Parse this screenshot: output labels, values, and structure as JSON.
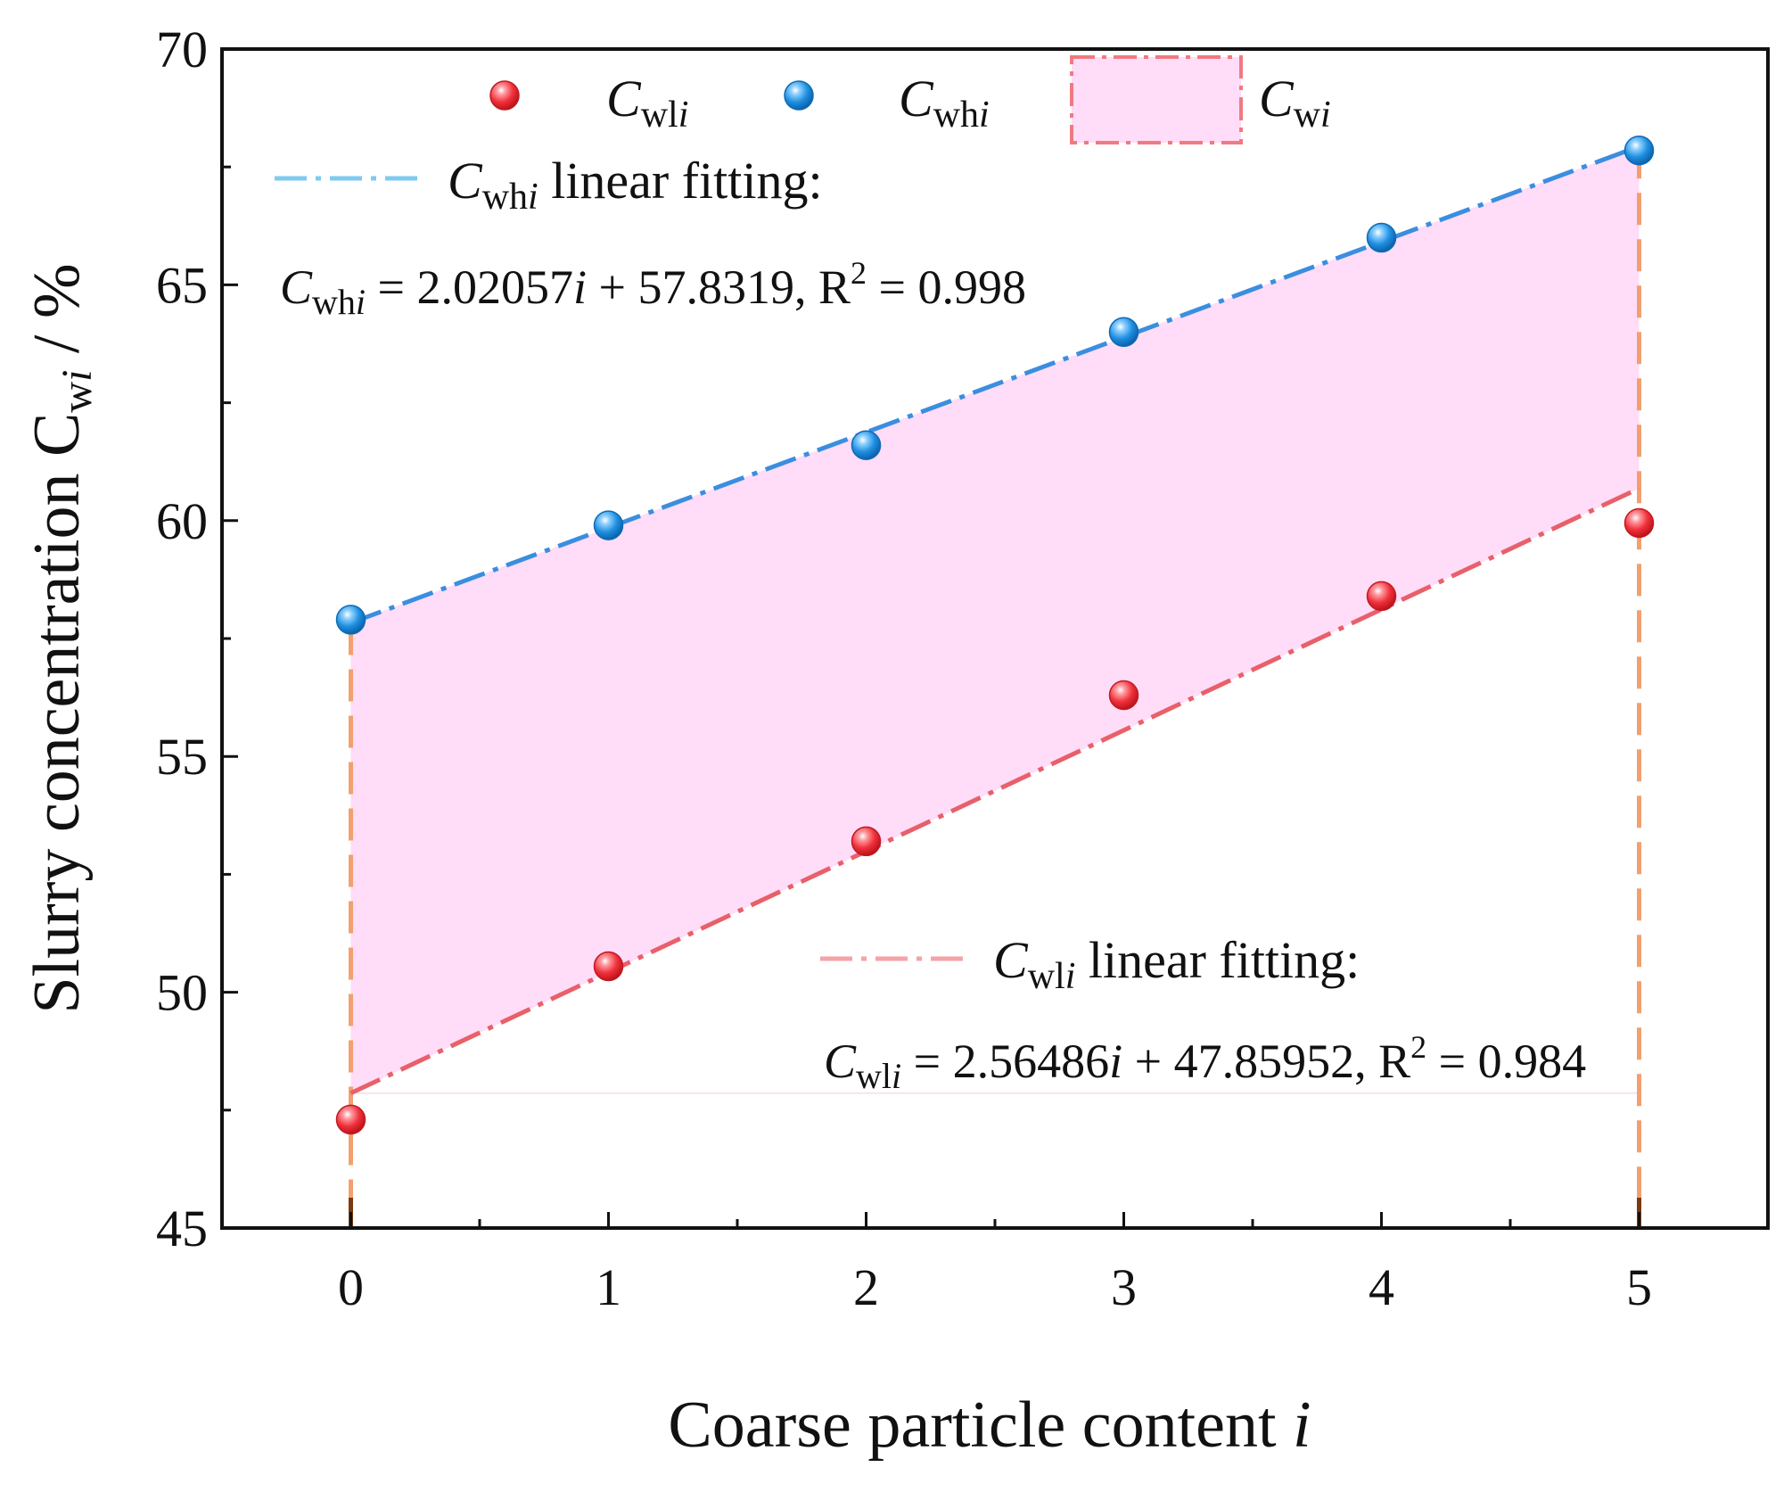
{
  "chart_data": {
    "type": "scatter",
    "xlabel": "Coarse particle content ",
    "xlabel_italic": "i",
    "ylabel": "Slurry concentration ",
    "ylabel_symbol": "C",
    "ylabel_sub": "w",
    "ylabel_sub_italic": "i",
    "ylabel_unit": " / %",
    "xlim": [
      -0.5,
      5.5
    ],
    "ylim": [
      45,
      70
    ],
    "x_ticks": [
      0,
      1,
      2,
      3,
      4,
      5
    ],
    "x_minor_ticks": [
      0.5,
      1.5,
      2.5,
      3.5,
      4.5
    ],
    "y_ticks": [
      45,
      50,
      55,
      60,
      65,
      70
    ],
    "y_minor_ticks": [
      47.5,
      52.5,
      57.5,
      62.5,
      67.5
    ],
    "x_tick_labels": [
      "0",
      "1",
      "2",
      "3",
      "4",
      "5"
    ],
    "y_tick_labels": [
      "45",
      "50",
      "55",
      "60",
      "65",
      "70"
    ],
    "series": [
      {
        "name": "Cwli",
        "symbol": "C",
        "sub": "wl",
        "sub_italic": "i",
        "color": "#f0303a",
        "x": [
          0,
          1,
          2,
          3,
          4,
          5
        ],
        "y": [
          47.3,
          50.55,
          53.2,
          56.3,
          58.4,
          59.95
        ],
        "fit": {
          "slope": 2.56486,
          "intercept": 47.85952,
          "r2": 0.984,
          "color": "#e8606a"
        }
      },
      {
        "name": "Cwhi",
        "symbol": "C",
        "sub": "wh",
        "sub_italic": "i",
        "color": "#1e8fe0",
        "x": [
          0,
          1,
          2,
          3,
          4,
          5
        ],
        "y": [
          57.9,
          59.9,
          61.6,
          64.0,
          66.0,
          67.85
        ],
        "fit": {
          "slope": 2.02057,
          "intercept": 57.8319,
          "r2": 0.998,
          "color": "#3a8ee0"
        }
      }
    ],
    "band": {
      "name": "Cwi",
      "symbol": "C",
      "sub": "w",
      "sub_italic": "i",
      "fill": "#ffdcf7",
      "edge_color": "#f2a070",
      "x_range": [
        0,
        5
      ],
      "lower": "Cwli linear fit",
      "upper": "Cwhi linear fit"
    },
    "legend": {
      "position": "top",
      "items": [
        {
          "symbol": "C",
          "sub": "wl",
          "sub_italic": "i"
        },
        {
          "symbol": "C",
          "sub": "wh",
          "sub_italic": "i"
        },
        {
          "symbol": "C",
          "sub": "w",
          "sub_italic": "i"
        }
      ]
    },
    "annotations": {
      "upper_fit_label": {
        "symbol": "C",
        "sub": "wh",
        "sub_italic": "i",
        "text": " linear fitting:"
      },
      "upper_fit_eq": {
        "symbol": "C",
        "sub": "wh",
        "sub_italic": "i",
        "eq_a": " = 2.02057",
        "eq_var": "i",
        "eq_b": " + 57.8319, R",
        "sup": "2",
        "eq_c": " = 0.998"
      },
      "lower_fit_label": {
        "symbol": "C",
        "sub": "wl",
        "sub_italic": "i",
        "text": " linear fitting:"
      },
      "lower_fit_eq": {
        "symbol": "C",
        "sub": "wl",
        "sub_italic": "i",
        "eq_a": " = 2.56486",
        "eq_var": "i",
        "eq_b": " + 47.85952, R",
        "sup": "2",
        "eq_c": " = 0.984"
      }
    }
  }
}
